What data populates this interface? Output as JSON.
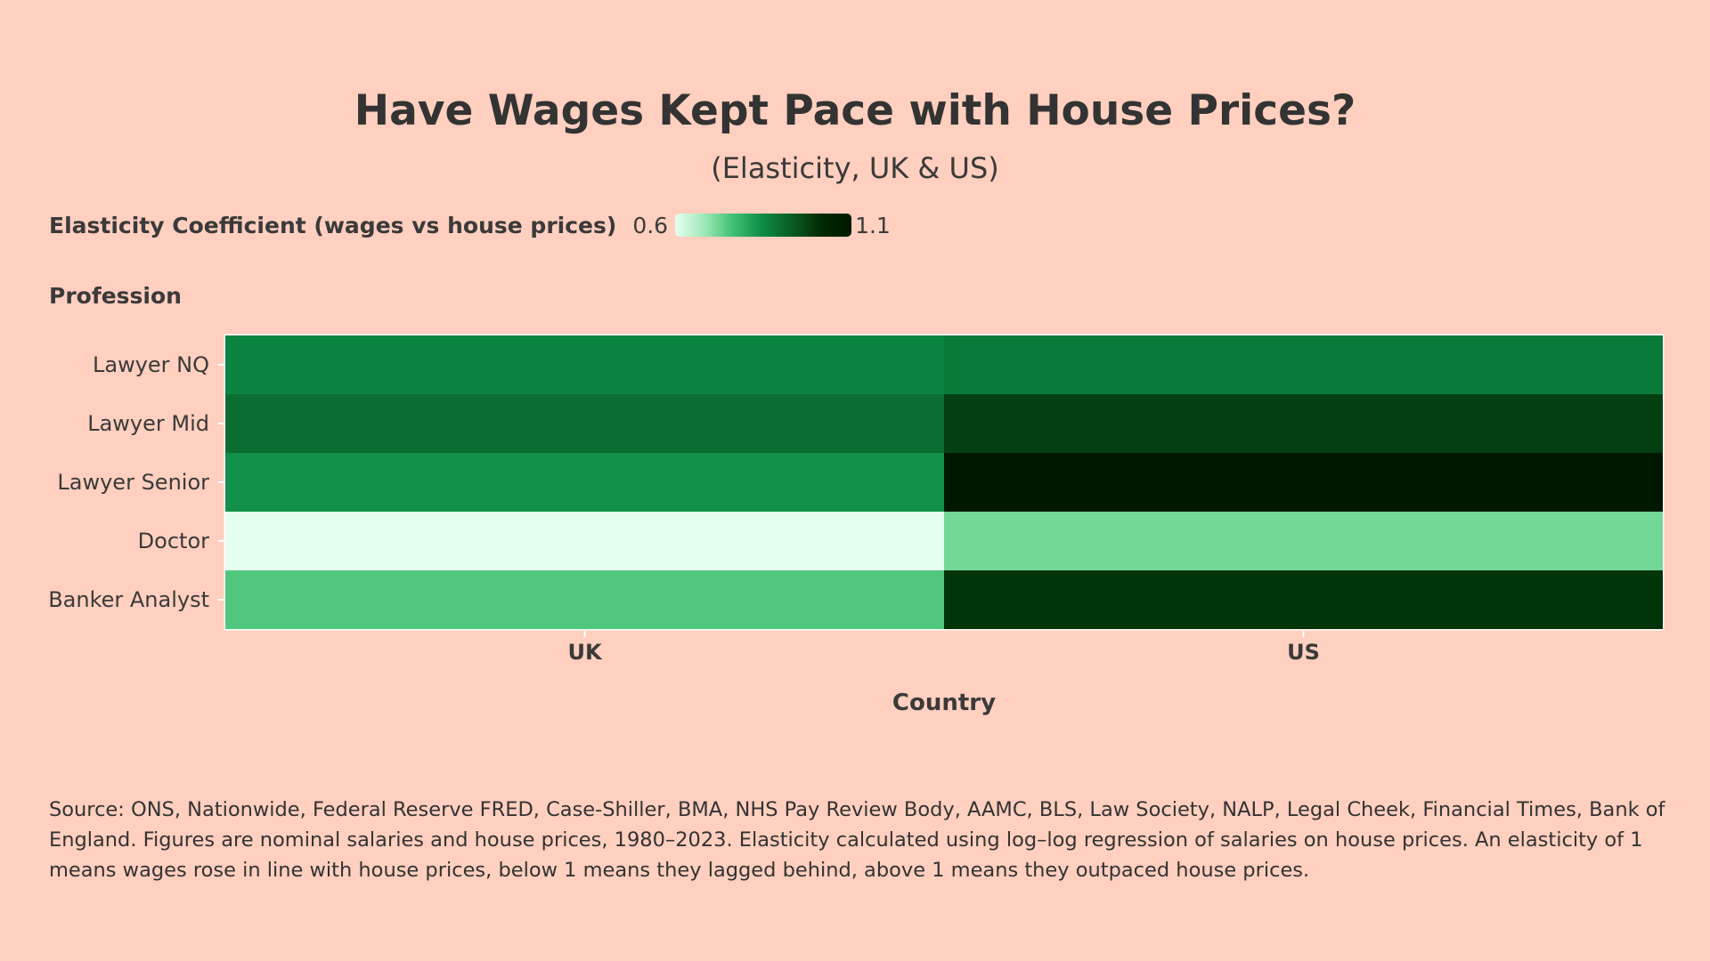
{
  "chart_data": {
    "type": "heatmap",
    "title": "Have Wages Kept Pace with House Prices?",
    "subtitle": "(Elasticity, UK & US)",
    "xlabel": "Country",
    "ylabel": "Profession",
    "x": [
      "UK",
      "US"
    ],
    "y": [
      "Lawyer NQ",
      "Lawyer Mid",
      "Lawyer Senior",
      "Doctor",
      "Banker Analyst"
    ],
    "z": [
      [
        0.86,
        0.88
      ],
      [
        0.9,
        0.98
      ],
      [
        0.84,
        1.1
      ],
      [
        0.6,
        0.72
      ],
      [
        0.75,
        1.0
      ]
    ],
    "colorbar": {
      "title": "Elasticity Coefficient (wages vs house prices)",
      "min": 0.6,
      "max": 1.1,
      "min_label": "0.6",
      "max_label": "1.1",
      "orientation": "horizontal",
      "colorscale": [
        "#e5ffef",
        "#9ee9b8",
        "#3cbf6e",
        "#0c8a45",
        "#0a5a23",
        "#002a02",
        "#001800"
      ]
    }
  },
  "source_note": "Source: ONS, Nationwide, Federal Reserve FRED, Case-Shiller, BMA, NHS Pay Review Body, AAMC, BLS, Law Society, NALP, Legal Cheek, Financial Times, Bank of England. Figures are nominal salaries and house prices, 1980–2023. Elasticity calculated using log–log regression of salaries on house prices. An elasticity of 1 means wages rose in line with house prices, below 1 means they lagged behind, above 1 means they outpaced house prices.",
  "colors": {
    "background": "#ffcfbf",
    "text": "#333333"
  }
}
